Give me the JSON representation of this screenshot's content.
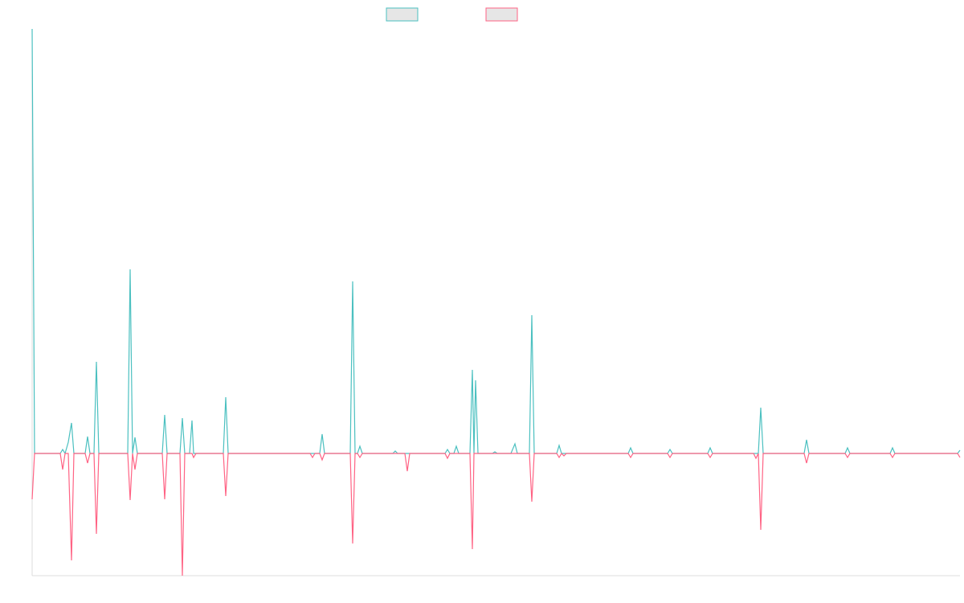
{
  "chart_data": {
    "type": "line",
    "x": [
      40,
      43,
      75,
      78,
      81,
      85,
      89,
      92,
      106,
      109,
      112,
      117,
      120,
      123,
      131,
      159,
      162,
      165,
      168,
      171,
      202,
      205,
      208,
      224,
      227,
      230,
      236,
      239,
      241,
      244,
      278,
      281,
      284,
      386,
      389,
      392,
      398,
      401,
      404,
      436,
      439,
      442,
      445,
      448,
      451,
      489,
      492,
      495,
      504,
      507,
      510,
      554,
      557,
      560,
      565,
      568,
      571,
      585,
      588,
      590,
      592,
      595,
      613,
      616,
      619,
      636,
      641,
      644,
      659,
      662,
      665,
      693,
      696,
      699,
      702,
      705,
      782,
      785,
      788,
      831,
      834,
      837,
      881,
      884,
      887,
      938,
      941,
      944,
      947,
      950,
      1001,
      1004,
      1007,
      1052,
      1055,
      1058,
      1108,
      1111,
      1114,
      1192,
      1195
    ],
    "series": [
      {
        "color": "#4bc0c0",
        "values": [
          528,
          0,
          0,
          5,
          0,
          14,
          38,
          0,
          0,
          21,
          0,
          0,
          114,
          0,
          0,
          0,
          229,
          0,
          20,
          0,
          0,
          48,
          0,
          0,
          44,
          0,
          0,
          41,
          0,
          0,
          0,
          70,
          0,
          0,
          0,
          0,
          0,
          24,
          0,
          0,
          214,
          0,
          0,
          9,
          0,
          0,
          3,
          0,
          0,
          0,
          0,
          0,
          5,
          0,
          0,
          9,
          0,
          0,
          104,
          0,
          91,
          0,
          0,
          2,
          0,
          0,
          12,
          0,
          0,
          172,
          0,
          0,
          10,
          0,
          0,
          0,
          0,
          7,
          0,
          0,
          5,
          0,
          0,
          7,
          0,
          0,
          0,
          0,
          57,
          0,
          0,
          17,
          0,
          0,
          7,
          0,
          0,
          7,
          0,
          0,
          4
        ]
      },
      {
        "color": "#ff6384",
        "values": [
          -57,
          0,
          0,
          -20,
          0,
          0,
          -133,
          0,
          0,
          -12,
          0,
          0,
          -100,
          0,
          0,
          0,
          -58,
          0,
          -20,
          0,
          0,
          -57,
          0,
          0,
          -152,
          0,
          0,
          0,
          -5,
          0,
          0,
          -53,
          0,
          0,
          -5,
          0,
          0,
          -8,
          0,
          0,
          -112,
          0,
          0,
          -5,
          0,
          0,
          0,
          0,
          0,
          -22,
          0,
          0,
          -6,
          0,
          0,
          0,
          0,
          0,
          -119,
          0,
          0,
          0,
          0,
          0,
          0,
          0,
          0,
          0,
          0,
          -60,
          0,
          0,
          -5,
          0,
          -3,
          0,
          0,
          -5,
          0,
          0,
          -5,
          0,
          0,
          -5,
          0,
          0,
          -6,
          0,
          -95,
          0,
          0,
          -12,
          0,
          0,
          -5,
          0,
          0,
          -5,
          0,
          0,
          -5
        ]
      }
    ],
    "xlim": [
      40,
      1195
    ],
    "ylim": [
      -152,
      528
    ]
  }
}
